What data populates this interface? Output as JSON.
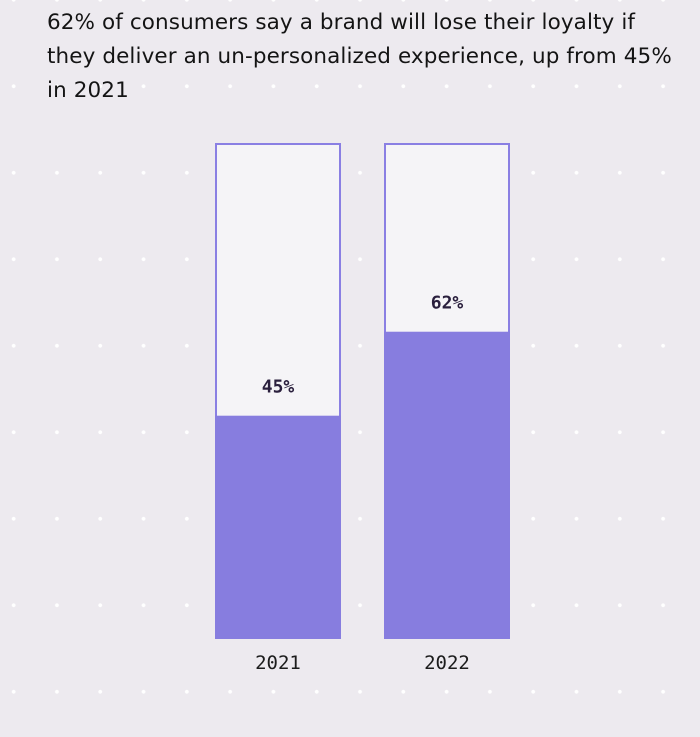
{
  "chart_data": {
    "type": "bar",
    "title": "62% of consumers say a brand will lose their loyalty if they deliver an un-personalized experience, up from 45% in 2021",
    "categories": [
      "2021",
      "2022"
    ],
    "values": [
      45,
      62
    ],
    "data_labels": [
      "45%",
      "62%"
    ],
    "ylim": [
      0,
      100
    ],
    "grid": false,
    "legend": "none",
    "colors": {
      "fill": "#877ddf",
      "outline": "#8a7fe3",
      "empty": "#f5f4f7",
      "background": "#edeaef"
    }
  }
}
